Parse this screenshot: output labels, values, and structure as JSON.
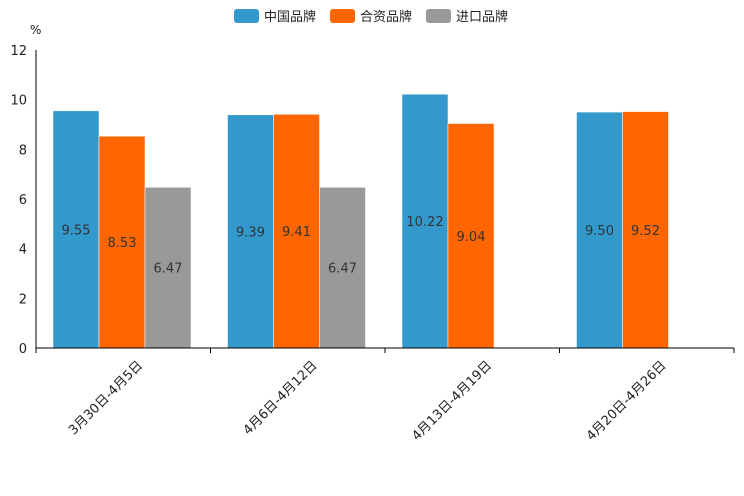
{
  "chart_data": {
    "type": "bar",
    "title": "",
    "ylabel": "%",
    "xlabel": "",
    "ylim": [
      0,
      12
    ],
    "yticks": [
      0,
      2,
      4,
      6,
      8,
      10,
      12
    ],
    "categories": [
      "3月30日-4月5日",
      "4月6日-4月12日",
      "4月13日-4月19日",
      "4月20日-4月26日"
    ],
    "series": [
      {
        "name": "中国品牌",
        "color": "#3399cc",
        "values": [
          9.55,
          9.39,
          10.22,
          9.5
        ],
        "labels": [
          "9.55",
          "9.39",
          "10.22",
          "9.50"
        ]
      },
      {
        "name": "合资品牌",
        "color": "#ff6600",
        "values": [
          8.53,
          9.41,
          9.04,
          9.52
        ],
        "labels": [
          "8.53",
          "9.41",
          "9.04",
          "9.52"
        ]
      },
      {
        "name": "进口品牌",
        "color": "#999999",
        "values": [
          6.47,
          6.47,
          null,
          null
        ],
        "labels": [
          "6.47",
          "6.47",
          null,
          null
        ]
      }
    ],
    "legend_position": "top-center",
    "grid": false
  }
}
